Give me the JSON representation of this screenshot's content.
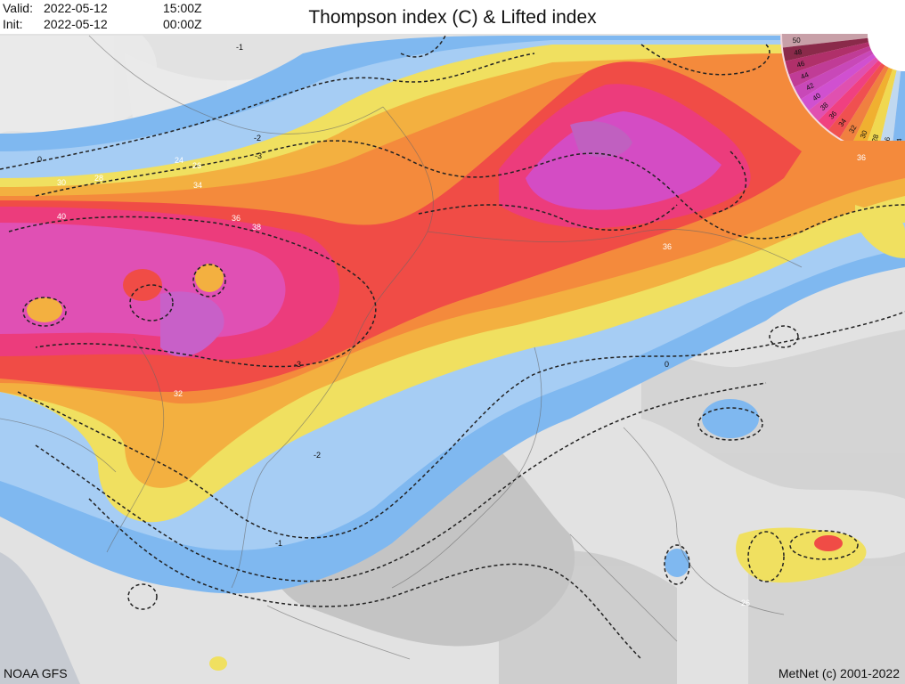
{
  "header": {
    "valid_label": "Valid:",
    "valid_date": "2022-05-12",
    "valid_time": "15:00Z",
    "init_label": "Init:",
    "init_date": "2022-05-12",
    "init_time": "00:00Z",
    "title": "Thompson index (C) & Lifted index"
  },
  "footer": {
    "model": "NOAA GFS",
    "credit": "MetNet (c) 2001-2022"
  },
  "legend": {
    "values": [
      "50",
      "48",
      "46",
      "44",
      "42",
      "40",
      "38",
      "36",
      "34",
      "32",
      "30",
      "28",
      "26",
      "24"
    ],
    "colors": [
      "#c8a0a8",
      "#8a2a4a",
      "#b0306a",
      "#c03c96",
      "#c848b8",
      "#d050d0",
      "#e050b0",
      "#f04080",
      "#f05050",
      "#f08040",
      "#f0b030",
      "#f0d850",
      "#c0d8f0",
      "#80b8f0"
    ]
  },
  "map_labels": {
    "thompson": [
      "40",
      "30",
      "28",
      "24",
      "26",
      "34",
      "36",
      "38",
      "36",
      "32",
      "26",
      "36"
    ],
    "lifted": [
      "-1",
      "-2",
      "-3",
      "0",
      "-2",
      "-1",
      "-3",
      "0"
    ]
  },
  "palette": {
    "land": "#e4e4e4",
    "t24": "#7fb8f0",
    "t26": "#a8cff4",
    "t28": "#f0e060",
    "t30": "#f3b040",
    "t32": "#f48a3c",
    "t34": "#f04c46",
    "t38": "#ec3c7c",
    "t40": "#e050b4",
    "t42": "#c860c8"
  }
}
